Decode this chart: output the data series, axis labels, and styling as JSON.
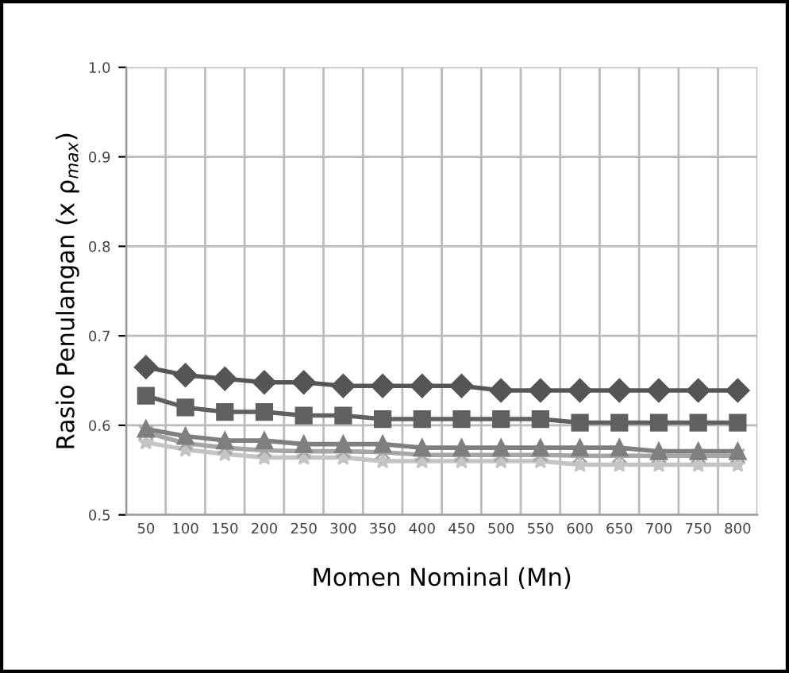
{
  "chart_data": {
    "type": "line",
    "xlabel": "Momen Nominal (Mn)",
    "ylabel": "Rasio Penulangan (x ρ$_{max}$)",
    "categories": [
      "50",
      "100",
      "150",
      "200",
      "250",
      "300",
      "350",
      "400",
      "450",
      "500",
      "550",
      "600",
      "650",
      "700",
      "750",
      "800"
    ],
    "series": [
      {
        "color": "#555555",
        "marker": "diamond",
        "values": [
          0.665,
          0.656,
          0.652,
          0.648,
          0.648,
          0.644,
          0.644,
          0.644,
          0.644,
          0.639,
          0.639,
          0.639,
          0.639,
          0.639,
          0.639,
          0.639
        ]
      },
      {
        "color": "#606060",
        "marker": "square",
        "values": [
          0.633,
          0.62,
          0.615,
          0.615,
          0.611,
          0.611,
          0.607,
          0.607,
          0.607,
          0.607,
          0.607,
          0.603,
          0.603,
          0.603,
          0.603,
          0.603
        ]
      },
      {
        "color": "#7f7f7f",
        "marker": "triangle",
        "values": [
          0.596,
          0.588,
          0.583,
          0.583,
          0.579,
          0.579,
          0.579,
          0.575,
          0.575,
          0.575,
          0.575,
          0.575,
          0.575,
          0.571,
          0.571,
          0.571
        ]
      },
      {
        "color": "#a6a6a6",
        "marker": "cross",
        "values": [
          0.592,
          0.58,
          0.575,
          0.572,
          0.571,
          0.571,
          0.57,
          0.567,
          0.567,
          0.567,
          0.567,
          0.566,
          0.566,
          0.566,
          0.566,
          0.566
        ]
      },
      {
        "color": "#c4c4c4",
        "marker": "star",
        "values": [
          0.581,
          0.573,
          0.568,
          0.564,
          0.564,
          0.564,
          0.56,
          0.56,
          0.56,
          0.56,
          0.56,
          0.556,
          0.556,
          0.556,
          0.556,
          0.556
        ]
      }
    ],
    "ylim": [
      0.5,
      1.0
    ],
    "yticks": [
      {
        "value": 0.5,
        "label": "0.5"
      },
      {
        "value": 0.6,
        "label": "0.6"
      },
      {
        "value": 0.7,
        "label": "0.7"
      },
      {
        "value": 0.8,
        "label": "0.8"
      },
      {
        "value": 0.9,
        "label": "0.9"
      },
      {
        "value": 1.0,
        "label": "1.0"
      }
    ],
    "grid": true,
    "legend": false
  }
}
